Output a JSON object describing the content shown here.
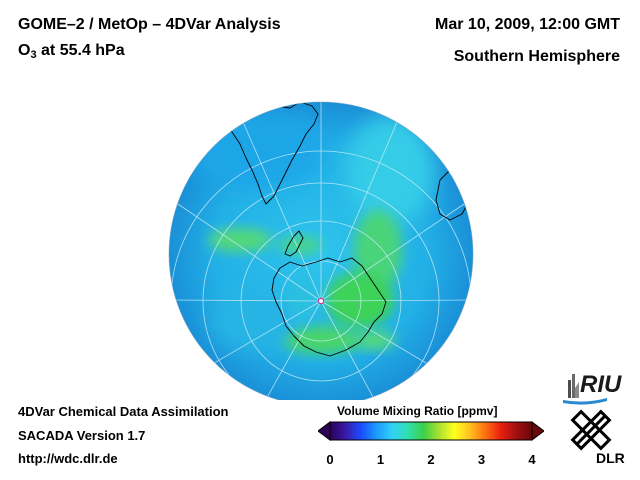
{
  "header": {
    "title": "GOME–2 / MetOp – 4DVar Analysis",
    "species_prefix": "O",
    "species_sub": "3",
    "species_suffix": " at 55.4 hPa",
    "datetime": "Mar 10, 2009, 12:00 GMT",
    "hemisphere": "Southern Hemisphere"
  },
  "footer": {
    "line1": "4DVar Chemical Data Assimilation",
    "line2": "SACADA Version 1.7",
    "line3": "http://wdc.dlr.de"
  },
  "colorbar": {
    "title": "Volume Mixing Ratio [ppmv]",
    "min": 0,
    "max": 4,
    "ticks": [
      "0",
      "1",
      "2",
      "3",
      "4"
    ],
    "colors": [
      "#2b0055",
      "#3a1aa8",
      "#1a4cff",
      "#1c9bff",
      "#32d0f5",
      "#2fe0b0",
      "#3ad04a",
      "#a8e030",
      "#ffff20",
      "#ffc020",
      "#ff7010",
      "#e82010",
      "#a01010",
      "#6a0808"
    ]
  },
  "logos": {
    "riu": "RIU",
    "dlr": "DLR"
  },
  "map": {
    "ocean_base_color": "#22b4e4",
    "high_ozone_color": "#3ed45c",
    "coast_color": "#000000",
    "grid_color": "#bfe6f5"
  }
}
